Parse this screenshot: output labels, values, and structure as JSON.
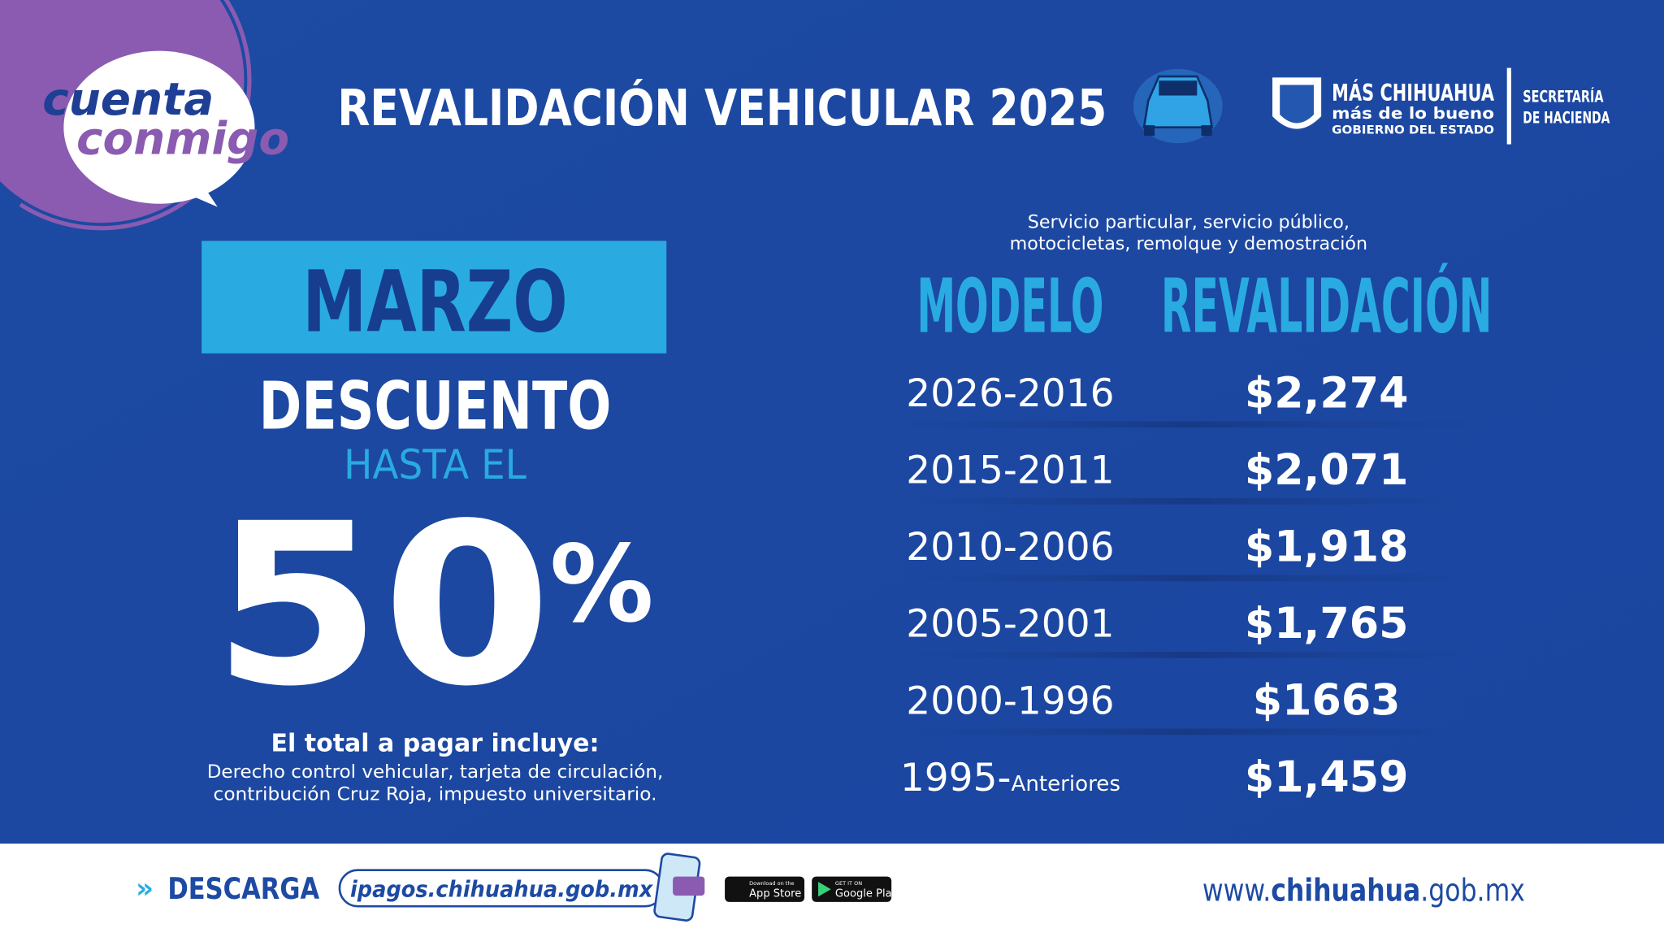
{
  "logo": {
    "line1": "cuenta",
    "line2": "conmigo"
  },
  "header": {
    "title": "REVALIDACIÓN VEHICULAR 2025",
    "gov": {
      "name": "MÁS CHIHUAHUA",
      "slogan": "más de lo bueno",
      "entity": "GOBIERNO DEL ESTADO",
      "office_line1": "SECRETARÍA",
      "office_line2": "DE HACIENDA"
    }
  },
  "promo": {
    "month": "MARZO",
    "discount": "DESCUENTO",
    "up_to": "HASTA EL",
    "percent_number": "50",
    "percent_sign": "%",
    "includes_title": "El total a pagar incluye:",
    "includes_line1": "Derecho control vehicular, tarjeta de circulación,",
    "includes_line2": "contribución Cruz Roja, impuesto universitario."
  },
  "table": {
    "subtitle_line1": "Servicio particular, servicio público,",
    "subtitle_line2": "motocicletas, remolque y demostración",
    "headers": [
      "MODELO",
      "REVALIDACIÓN"
    ],
    "rows": [
      {
        "model": "2026-2016",
        "price": "$2,274"
      },
      {
        "model": "2015-2011",
        "price": "$2,071"
      },
      {
        "model": "2010-2006",
        "price": "$1,918"
      },
      {
        "model": "2005-2001",
        "price": "$1,765"
      },
      {
        "model": "2000-1996",
        "price": "$1663"
      },
      {
        "model": "1995-",
        "suffix": "Anteriores",
        "price": "$1,459"
      }
    ]
  },
  "footer": {
    "download": "DESCARGA",
    "url": "ipagos.chihuahua.gob.mx",
    "app_store_small": "Download on the",
    "app_store": "App Store",
    "google_small": "GET IT ON",
    "google": "Google Play",
    "site_prefix": "www.",
    "site_main": "chihuahua",
    "site_suffix": ".gob.mx"
  }
}
